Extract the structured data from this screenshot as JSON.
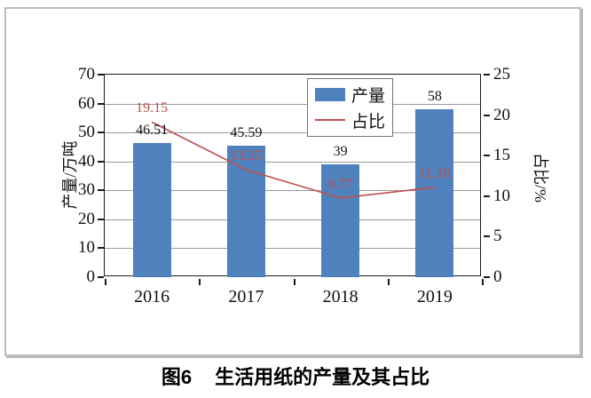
{
  "caption": {
    "prefix": "图6",
    "title": "生活用纸的产量及其占比"
  },
  "chart_data": {
    "type": "bar+line",
    "categories": [
      "2016",
      "2017",
      "2018",
      "2019"
    ],
    "series": [
      {
        "name": "产量",
        "type": "bar",
        "axis": "left",
        "values": [
          46.51,
          45.59,
          39,
          58
        ],
        "labels": [
          "46.51",
          "45.59",
          "39",
          "58"
        ],
        "color": "#4F81BD"
      },
      {
        "name": "占比",
        "type": "line",
        "axis": "right",
        "values": [
          19.15,
          13.25,
          9.77,
          11.1
        ],
        "labels": [
          "19.15",
          "13.25",
          "9.77",
          "11.10"
        ],
        "color": "#C0504D"
      }
    ],
    "left_axis": {
      "title": "产量/万吨",
      "min": 0,
      "max": 70,
      "step": 10,
      "ticks": [
        "0",
        "10",
        "20",
        "30",
        "40",
        "50",
        "60",
        "70"
      ]
    },
    "right_axis": {
      "title": "占比/%",
      "min": 0,
      "max": 25,
      "step": 5,
      "ticks": [
        "0",
        "5",
        "10",
        "15",
        "20",
        "25"
      ]
    },
    "legend_position": "top-center-inside",
    "grid": "horizontal"
  }
}
